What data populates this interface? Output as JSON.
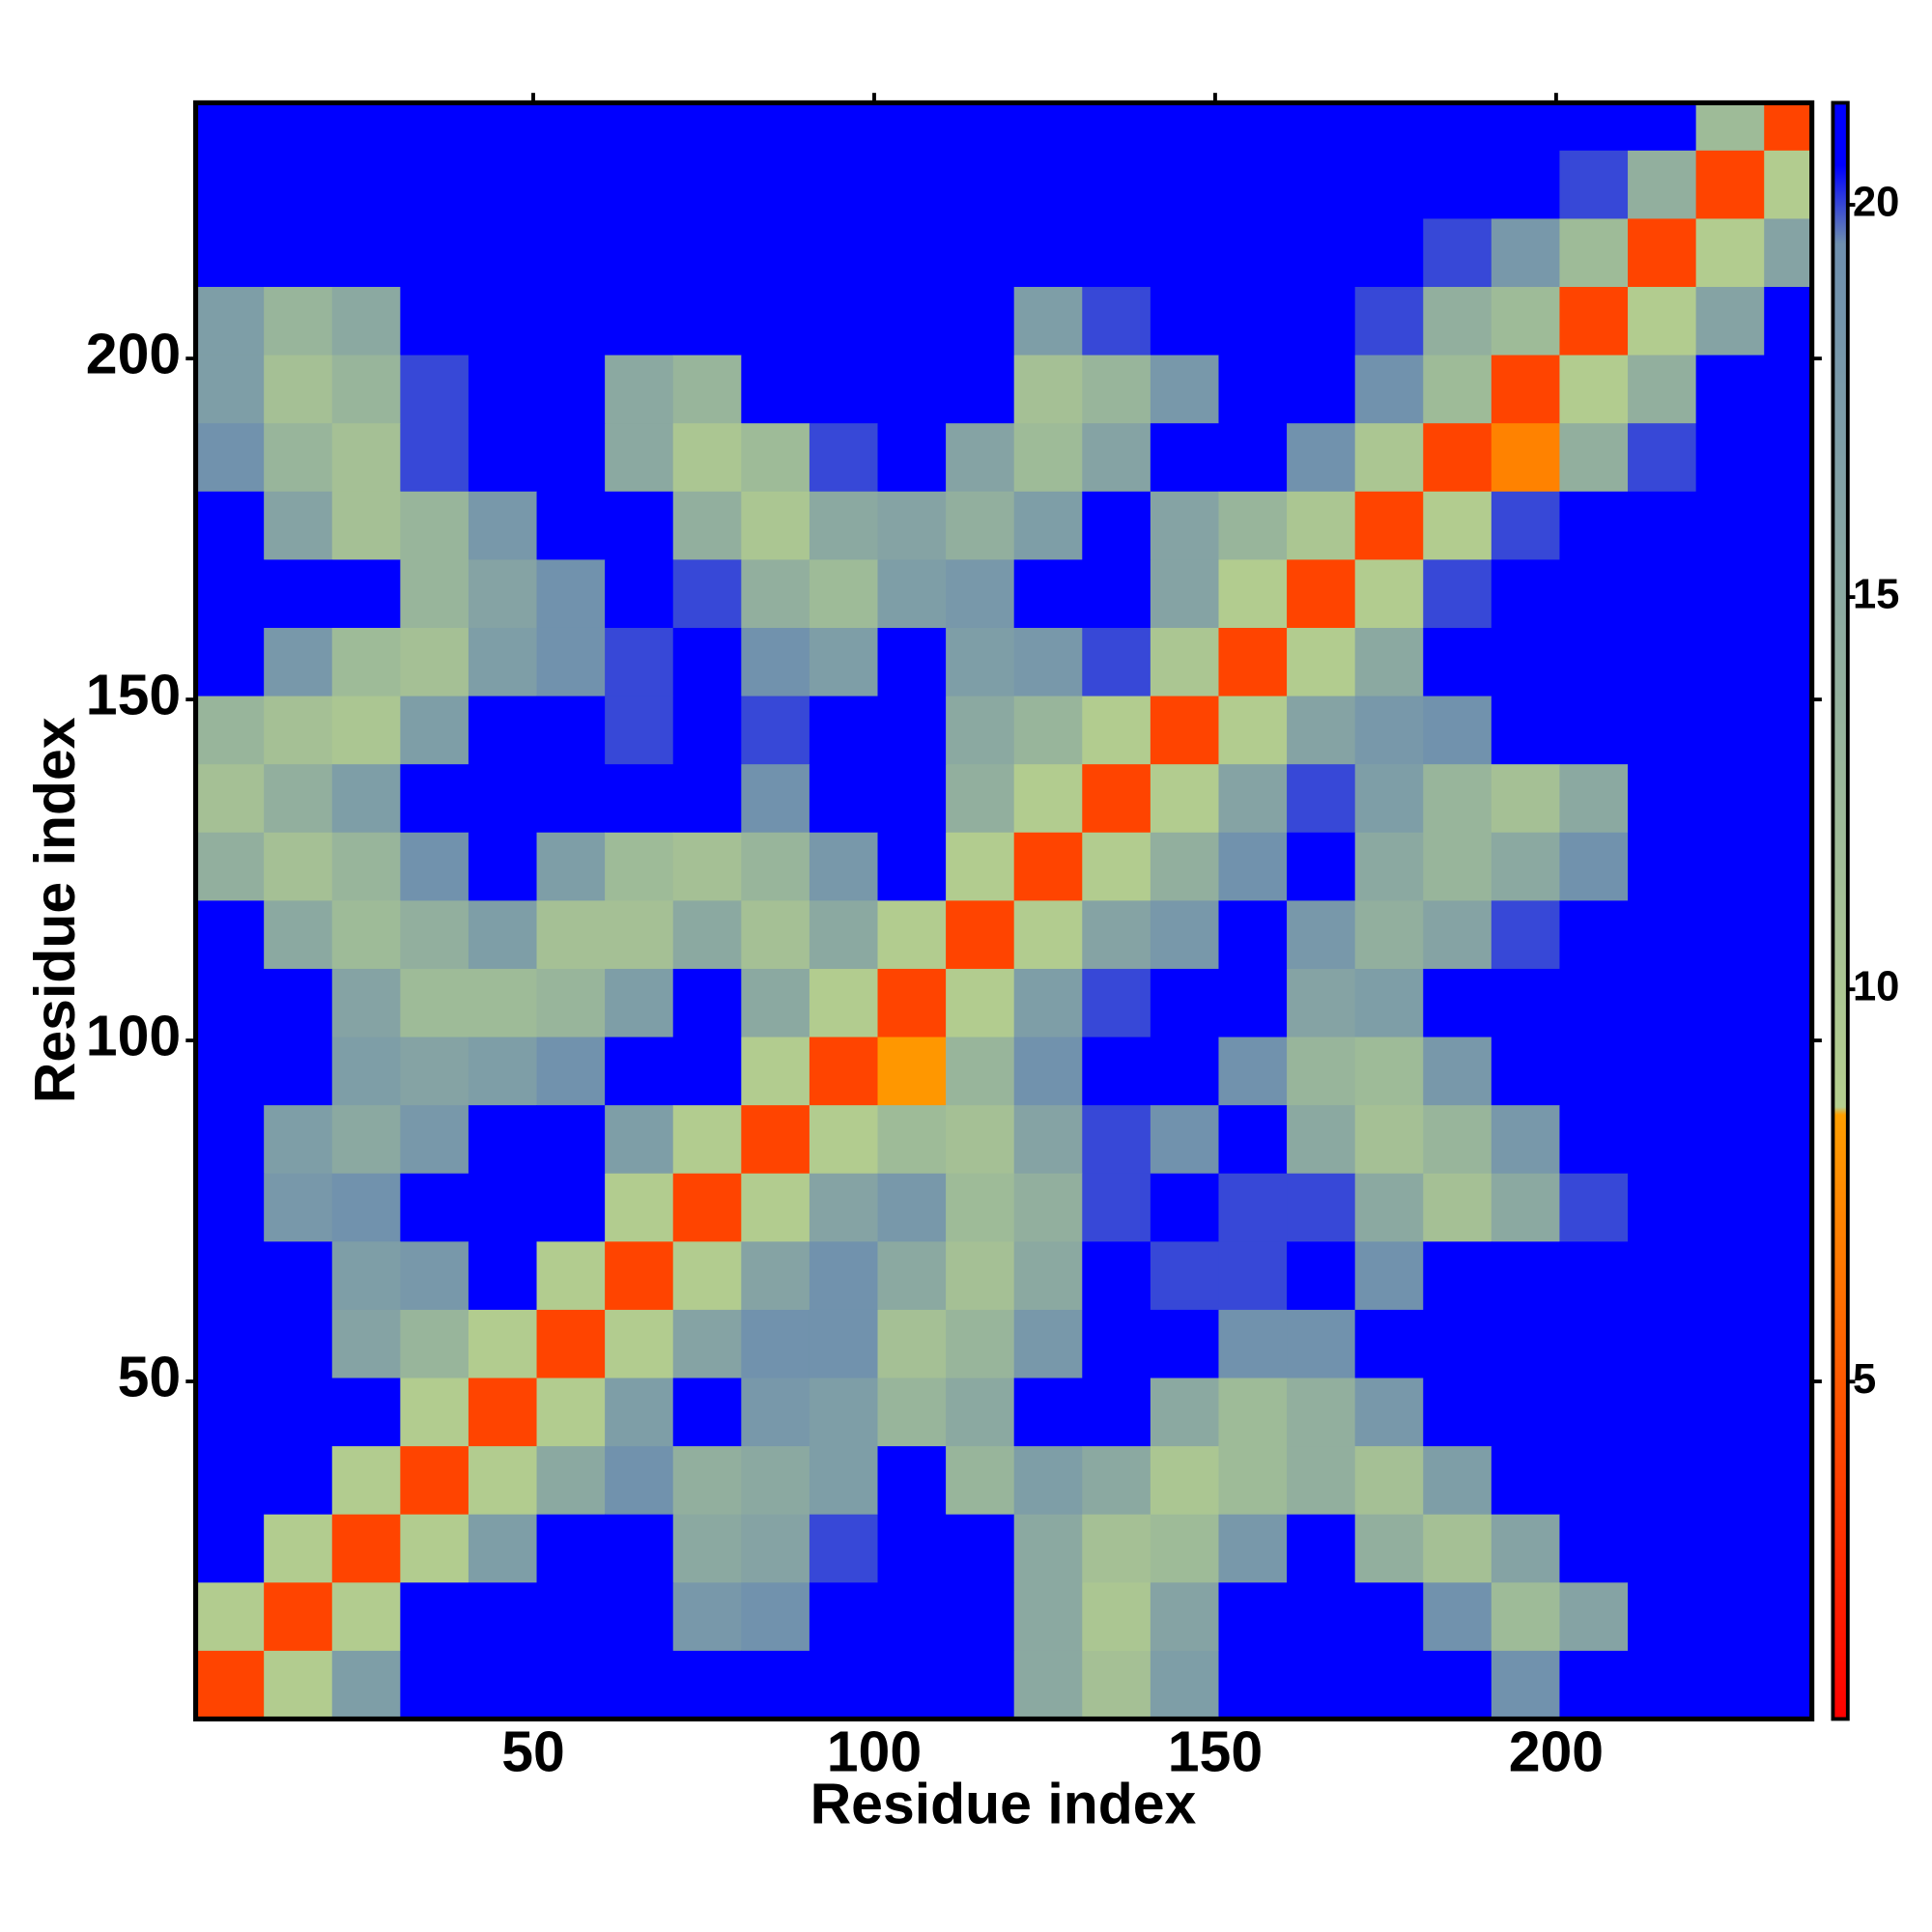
{
  "chart_data": {
    "type": "heatmap",
    "xlabel": "Residue index",
    "ylabel": "Residue index",
    "xlim": [
      0.5,
      237.5
    ],
    "ylim": [
      0.5,
      237.5
    ],
    "xticks": [
      50,
      100,
      150,
      200
    ],
    "yticks": [
      50,
      100,
      150,
      200
    ],
    "xbins": [
      0.5,
      10.5,
      20.5,
      30.5,
      40.5,
      50.5,
      60.5,
      70.5,
      80.5,
      90.5,
      100.5,
      110.5,
      120.5,
      130.5,
      140.5,
      150.5,
      160.5,
      170.5,
      180.5,
      190.5,
      200.5,
      210.5,
      220.5,
      230.5,
      237.5
    ],
    "ybins": [
      237.5,
      230.5,
      220.5,
      210.5,
      200.5,
      190.5,
      180.5,
      170.5,
      160.5,
      150.5,
      140.5,
      130.5,
      120.5,
      110.5,
      100.5,
      90.5,
      80.5,
      70.5,
      60.5,
      50.5,
      40.5,
      30.5,
      20.5,
      10.5,
      0.5
    ],
    "z": [
      [
        21,
        21,
        21,
        21,
        21,
        21,
        21,
        21,
        21,
        21,
        21,
        21,
        21,
        21,
        21,
        21,
        21,
        21,
        21,
        21,
        21,
        21,
        12,
        4
      ],
      [
        21,
        21,
        21,
        21,
        21,
        21,
        21,
        21,
        21,
        21,
        21,
        21,
        21,
        21,
        21,
        21,
        21,
        21,
        21,
        21,
        20,
        14,
        4,
        9
      ],
      [
        21,
        21,
        21,
        21,
        21,
        21,
        21,
        21,
        21,
        21,
        21,
        21,
        21,
        21,
        21,
        21,
        21,
        21,
        20,
        18,
        12,
        4,
        9,
        16
      ],
      [
        17,
        13,
        15,
        21,
        21,
        21,
        21,
        21,
        21,
        21,
        21,
        21,
        17,
        20,
        21,
        21,
        21,
        20,
        14,
        12,
        4,
        9,
        16,
        21
      ],
      [
        17,
        11,
        13,
        20,
        21,
        21,
        15,
        13,
        21,
        21,
        21,
        21,
        11,
        13,
        18,
        21,
        21,
        19,
        12,
        4,
        9,
        14,
        21,
        21
      ],
      [
        19,
        13,
        11,
        20,
        21,
        21,
        15,
        10,
        12,
        20,
        21,
        16,
        12,
        16,
        21,
        21,
        19,
        10,
        4,
        7,
        14,
        20,
        21,
        21
      ],
      [
        21,
        16,
        11,
        13,
        18,
        21,
        21,
        14,
        10,
        15,
        16,
        14,
        17,
        21,
        16,
        13,
        10,
        4,
        9,
        20,
        21,
        21,
        21,
        21
      ],
      [
        21,
        21,
        21,
        13,
        16,
        19,
        21,
        20,
        14,
        12,
        17,
        18,
        21,
        21,
        16,
        9,
        4,
        9,
        20,
        21,
        21,
        21,
        21,
        21
      ],
      [
        21,
        18,
        12,
        11,
        17,
        19,
        20,
        21,
        19,
        17,
        21,
        17,
        18,
        20,
        10,
        4,
        9,
        15,
        21,
        21,
        21,
        21,
        21,
        21
      ],
      [
        13,
        11,
        10,
        17,
        21,
        21,
        20,
        21,
        20,
        21,
        21,
        15,
        13,
        9,
        4,
        9,
        16,
        18,
        19,
        21,
        21,
        21,
        21,
        21
      ],
      [
        11,
        14,
        17,
        21,
        21,
        21,
        21,
        21,
        19,
        21,
        21,
        14,
        9,
        4,
        9,
        16,
        20,
        17,
        13,
        11,
        15,
        21,
        21,
        21
      ],
      [
        14,
        11,
        13,
        19,
        21,
        17,
        12,
        11,
        13,
        18,
        21,
        9,
        4,
        9,
        14,
        19,
        21,
        15,
        13,
        15,
        19,
        21,
        21,
        21
      ],
      [
        21,
        15,
        12,
        14,
        17,
        11,
        11,
        15,
        11,
        15,
        9,
        4,
        9,
        16,
        18,
        21,
        18,
        14,
        16,
        20,
        21,
        21,
        21,
        21
      ],
      [
        21,
        21,
        16,
        12,
        12,
        13,
        17,
        21,
        15,
        9,
        4,
        9,
        17,
        20,
        21,
        21,
        16,
        17,
        21,
        21,
        21,
        21,
        21,
        21
      ],
      [
        21,
        21,
        17,
        16,
        17,
        19,
        21,
        21,
        9,
        4,
        8,
        13,
        19,
        21,
        21,
        19,
        13,
        12,
        18,
        21,
        21,
        21,
        21,
        21
      ],
      [
        21,
        17,
        15,
        18,
        21,
        21,
        17,
        9,
        4,
        9,
        12,
        11,
        16,
        20,
        19,
        21,
        15,
        11,
        13,
        18,
        21,
        21,
        21,
        21
      ],
      [
        21,
        18,
        19,
        21,
        21,
        21,
        9,
        4,
        9,
        16,
        18,
        12,
        14,
        20,
        21,
        20,
        20,
        15,
        11,
        15,
        20,
        21,
        21,
        21
      ],
      [
        21,
        21,
        17,
        18,
        21,
        9,
        4,
        9,
        16,
        19,
        15,
        11,
        15,
        21,
        20,
        20,
        21,
        19,
        21,
        21,
        21,
        21,
        21,
        21
      ],
      [
        21,
        21,
        16,
        13,
        9,
        4,
        9,
        16,
        19,
        19,
        11,
        13,
        18,
        21,
        21,
        19,
        19,
        21,
        21,
        21,
        21,
        21,
        21,
        21
      ],
      [
        21,
        21,
        21,
        9,
        4,
        9,
        17,
        21,
        18,
        17,
        13,
        15,
        21,
        21,
        15,
        12,
        14,
        18,
        21,
        21,
        21,
        21,
        21,
        21
      ],
      [
        21,
        21,
        9,
        4,
        9,
        15,
        19,
        14,
        15,
        17,
        21,
        13,
        17,
        15,
        10,
        12,
        14,
        11,
        17,
        21,
        21,
        21,
        21,
        21
      ],
      [
        21,
        9,
        4,
        9,
        17,
        21,
        21,
        15,
        16,
        20,
        21,
        21,
        15,
        11,
        12,
        18,
        21,
        14,
        11,
        16,
        21,
        21,
        21,
        21
      ],
      [
        9,
        4,
        9,
        21,
        21,
        21,
        21,
        18,
        19,
        21,
        21,
        21,
        15,
        10,
        16,
        21,
        21,
        21,
        19,
        12,
        16,
        21,
        21,
        21
      ],
      [
        4,
        9,
        17,
        21,
        21,
        21,
        21,
        21,
        21,
        21,
        21,
        21,
        15,
        11,
        17,
        21,
        21,
        21,
        21,
        19,
        21,
        21,
        21,
        21
      ]
    ],
    "colorbar": {
      "lim": [
        0.7,
        21.3
      ],
      "ticks": [
        5,
        10,
        15,
        20
      ],
      "colorscale": [
        [
          0.7,
          "#ff0000"
        ],
        [
          8.4,
          "#ff9f00"
        ],
        [
          8.5,
          "#b5cf8e"
        ],
        [
          19.5,
          "#6e8fae"
        ],
        [
          20.5,
          "#0000ff"
        ]
      ]
    }
  }
}
